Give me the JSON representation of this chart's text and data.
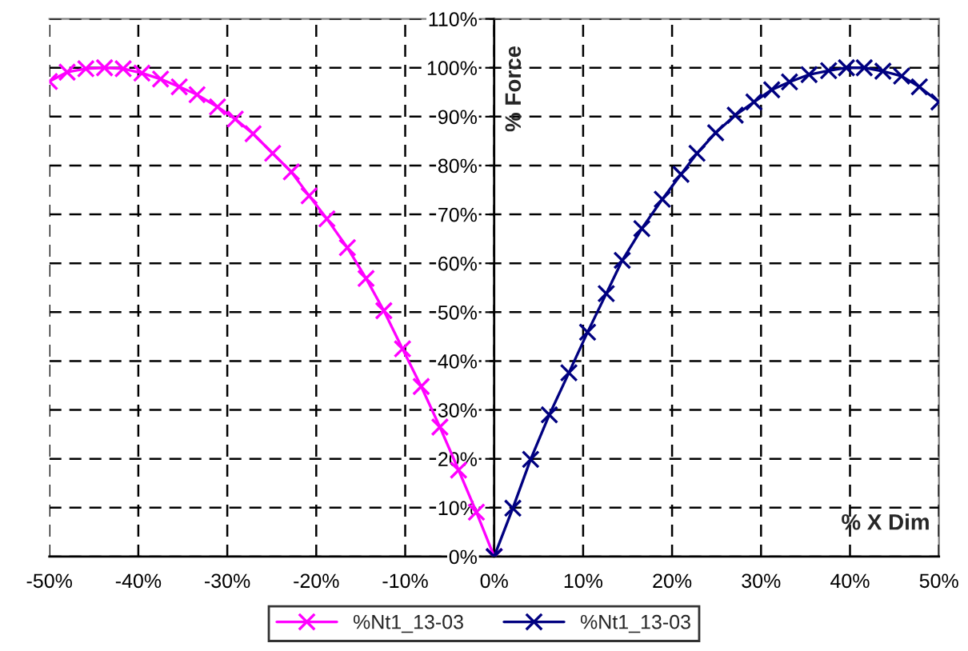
{
  "chart_data": {
    "type": "line",
    "xlabel": "% X Dim",
    "ylabel": "% Force",
    "xlim": [
      -50,
      50
    ],
    "ylim": [
      0,
      110
    ],
    "xticks": [
      {
        "value": -50,
        "label": "-50%"
      },
      {
        "value": -40,
        "label": "-40%"
      },
      {
        "value": -30,
        "label": "-30%"
      },
      {
        "value": -20,
        "label": "-20%"
      },
      {
        "value": -10,
        "label": "-10%"
      },
      {
        "value": 0,
        "label": "0%"
      },
      {
        "value": 10,
        "label": "10%"
      },
      {
        "value": 20,
        "label": "20%"
      },
      {
        "value": 30,
        "label": "30%"
      },
      {
        "value": 40,
        "label": "40%"
      },
      {
        "value": 50,
        "label": "50%"
      }
    ],
    "yticks": [
      {
        "value": 0,
        "label": "0%"
      },
      {
        "value": 10,
        "label": "10%"
      },
      {
        "value": 20,
        "label": "20%"
      },
      {
        "value": 30,
        "label": "30%"
      },
      {
        "value": 40,
        "label": "40%"
      },
      {
        "value": 50,
        "label": "50%"
      },
      {
        "value": 60,
        "label": "60%"
      },
      {
        "value": 70,
        "label": "70%"
      },
      {
        "value": 80,
        "label": "80%"
      },
      {
        "value": 90,
        "label": "90%"
      },
      {
        "value": 100,
        "label": "100%"
      },
      {
        "value": 110,
        "label": "110%"
      }
    ],
    "grid": true,
    "legend": "bottom",
    "marker": "cross",
    "line_style": "solid",
    "series": [
      {
        "name": "%Nt1_13-03",
        "color": "#ff00ff",
        "x": [
          -50,
          -48,
          -45.9,
          -43.8,
          -41.7,
          -39.6,
          -37.5,
          -35.4,
          -33.4,
          -31.1,
          -29.1,
          -27.1,
          -24.9,
          -22.8,
          -20.8,
          -18.8,
          -16.5,
          -14.4,
          -12.4,
          -10.3,
          -8.2,
          -6.1,
          -4,
          -2,
          0
        ],
        "values": [
          97.2,
          99.1,
          99.8,
          100,
          99.8,
          98.9,
          97.7,
          96.1,
          94.5,
          92,
          89.5,
          86.5,
          82.5,
          78.7,
          73.8,
          69.1,
          63.2,
          56.9,
          50.3,
          42.5,
          34.8,
          26.5,
          17.7,
          9.1,
          0
        ]
      },
      {
        "name": "%Nt1_13-03",
        "color": "#000080",
        "x": [
          0,
          2.1,
          4.1,
          6.2,
          8.4,
          10.5,
          12.6,
          14.4,
          16.6,
          18.9,
          21,
          22.8,
          24.9,
          27.1,
          29.2,
          31.2,
          33.2,
          35.4,
          37.6,
          39.6,
          41.6,
          43.7,
          45.8,
          47.8,
          50
        ],
        "values": [
          0,
          9.9,
          19.9,
          29,
          37.6,
          45.9,
          53.8,
          60.6,
          67.1,
          73.1,
          78.2,
          82.5,
          86.7,
          90.3,
          93,
          95.5,
          97.1,
          98.6,
          99.4,
          100,
          100,
          99.3,
          98.3,
          96.1,
          93
        ]
      }
    ]
  }
}
